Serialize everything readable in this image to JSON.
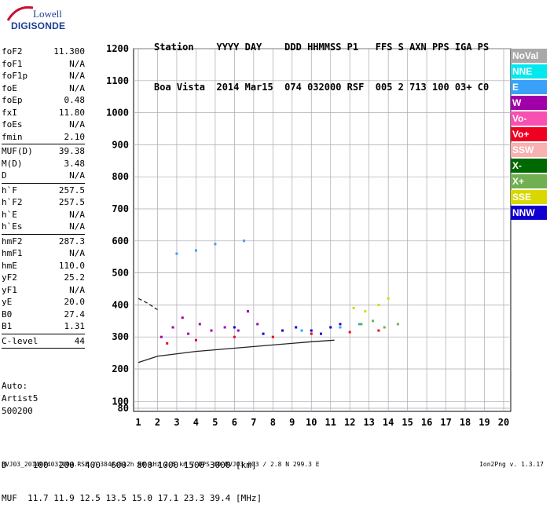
{
  "logo": {
    "line1": "Lowell",
    "line2": "DIGISONDE"
  },
  "header": {
    "labels": "Station    YYYY DAY    DDD HHMMSS P1   FFS S AXN PPS IGA PS",
    "values": "Boa Vista  2014 Mar15  074 032000 RSF  005 2 713 100 03+ C0"
  },
  "params": [
    {
      "name": "foF2",
      "value": "11.300"
    },
    {
      "name": "foF1",
      "value": "N/A"
    },
    {
      "name": "foF1p",
      "value": "N/A"
    },
    {
      "name": "foE",
      "value": "N/A"
    },
    {
      "name": "foEp",
      "value": "0.48"
    },
    {
      "name": "fxI",
      "value": "11.80"
    },
    {
      "name": "foEs",
      "value": "N/A"
    },
    {
      "name": "fmin",
      "value": "2.10"
    },
    {
      "name": "MUF(D)",
      "value": "39.38",
      "sep": true
    },
    {
      "name": "M(D)",
      "value": "3.48"
    },
    {
      "name": "D",
      "value": "N/A"
    },
    {
      "name": "h`F",
      "value": "257.5",
      "sep": true
    },
    {
      "name": "h`F2",
      "value": "257.5"
    },
    {
      "name": "h`E",
      "value": "N/A"
    },
    {
      "name": "h`Es",
      "value": "N/A"
    },
    {
      "name": "hmF2",
      "value": "287.3",
      "sep": true
    },
    {
      "name": "hmF1",
      "value": "N/A"
    },
    {
      "name": "hmE",
      "value": "110.0"
    },
    {
      "name": "yF2",
      "value": "25.2"
    },
    {
      "name": "yF1",
      "value": "N/A"
    },
    {
      "name": "yE",
      "value": "20.0"
    },
    {
      "name": "B0",
      "value": "27.4"
    },
    {
      "name": "B1",
      "value": "1.31"
    },
    {
      "name": "C-level",
      "value": "44",
      "sep": true
    }
  ],
  "autoscaling": {
    "line1": "Auto:",
    "line2": "Artist5",
    "line3": "500200"
  },
  "legend": [
    {
      "label": "NoVal",
      "color": "#a8a8a8"
    },
    {
      "label": "NNE",
      "color": "#00e8f0"
    },
    {
      "label": "E",
      "color": "#3aa0f8"
    },
    {
      "label": "W",
      "color": "#a000a8"
    },
    {
      "label": "Vo-",
      "color": "#f850b0"
    },
    {
      "label": "Vo+",
      "color": "#f00020"
    },
    {
      "label": "SSW",
      "color": "#f8b0b0"
    },
    {
      "label": "X-",
      "color": "#006800"
    },
    {
      "label": "X+",
      "color": "#70b050"
    },
    {
      "label": "SSE",
      "color": "#d8d800"
    },
    {
      "label": "NNW",
      "color": "#1000d0"
    }
  ],
  "distance": {
    "line1": "D     100  200  400  600  800 1000 1500 3000 [km]",
    "line2": "MUF  11.7 11.9 12.5 13.5 15.0 17.1 23.3 39.4 [MHz]"
  },
  "footer": "BVJ03_2014074032000.RSF / 384fx512h 50 kHz 2.5 km / DPS-4D BVJ03 003 / 2.8 N 299.3 E",
  "version": "Ion2Png v. 1.3.17",
  "chart_data": {
    "type": "scatter",
    "title": "",
    "xlabel": "",
    "ylabel": "",
    "xlim": [
      1,
      20
    ],
    "ylim": [
      80,
      1200
    ],
    "x_ticks": [
      1,
      2,
      3,
      4,
      5,
      6,
      7,
      8,
      9,
      10,
      11,
      12,
      13,
      14,
      15,
      16,
      17,
      18,
      19,
      20
    ],
    "y_ticks": [
      80,
      100,
      200,
      300,
      400,
      500,
      600,
      700,
      800,
      900,
      1000,
      1100,
      1200
    ],
    "grid": true,
    "legend_position": "right",
    "series": [
      {
        "name": "W",
        "points": [
          [
            2.2,
            300
          ],
          [
            2.8,
            330
          ],
          [
            3.3,
            360
          ],
          [
            3.6,
            310
          ],
          [
            4.2,
            340
          ],
          [
            4.8,
            320
          ],
          [
            5.5,
            330
          ],
          [
            6.2,
            320
          ],
          [
            6.7,
            380
          ],
          [
            7.2,
            340
          ]
        ]
      },
      {
        "name": "NNW",
        "points": [
          [
            6.0,
            330
          ],
          [
            7.5,
            310
          ],
          [
            8.5,
            320
          ],
          [
            9.2,
            330
          ],
          [
            10.0,
            320
          ],
          [
            10.5,
            310
          ],
          [
            11.0,
            330
          ],
          [
            11.5,
            340
          ]
        ]
      },
      {
        "name": "Vo+",
        "points": [
          [
            2.5,
            280
          ],
          [
            4.0,
            290
          ],
          [
            6.0,
            300
          ],
          [
            8.0,
            300
          ],
          [
            10.0,
            310
          ],
          [
            12.0,
            315
          ],
          [
            13.5,
            320
          ]
        ]
      },
      {
        "name": "E",
        "points": [
          [
            3.0,
            560
          ],
          [
            4.0,
            570
          ],
          [
            5.0,
            590
          ],
          [
            6.5,
            600
          ],
          [
            9.5,
            320
          ],
          [
            11.5,
            330
          ],
          [
            12.5,
            340
          ]
        ]
      },
      {
        "name": "SSE",
        "points": [
          [
            12.2,
            390
          ],
          [
            12.8,
            380
          ],
          [
            13.5,
            400
          ],
          [
            14.0,
            420
          ]
        ]
      },
      {
        "name": "X+",
        "points": [
          [
            12.6,
            340
          ],
          [
            13.2,
            350
          ],
          [
            13.8,
            330
          ],
          [
            14.5,
            340
          ]
        ]
      }
    ],
    "curves": [
      {
        "name": "profile_lower",
        "points": [
          [
            1.0,
            220
          ],
          [
            2.0,
            240
          ],
          [
            4.0,
            255
          ],
          [
            6.0,
            265
          ],
          [
            8.0,
            275
          ],
          [
            10.0,
            285
          ],
          [
            11.2,
            290
          ]
        ]
      },
      {
        "name": "profile_dashed",
        "points": [
          [
            1.0,
            420
          ],
          [
            1.5,
            405
          ],
          [
            2.0,
            385
          ]
        ]
      }
    ]
  }
}
